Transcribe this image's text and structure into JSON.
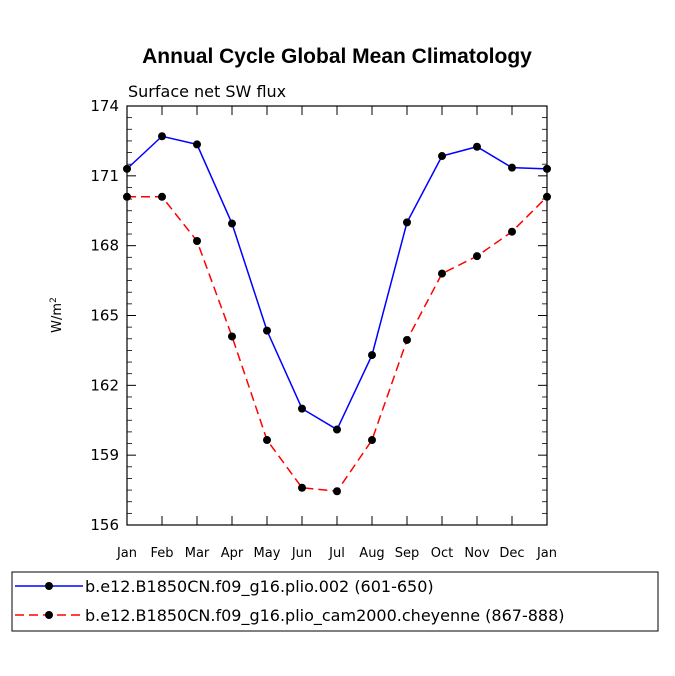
{
  "chart_data": {
    "type": "line",
    "title": "Annual Cycle Global Mean Climatology",
    "subtitle": "Surface net SW flux",
    "ylabel": "W/m",
    "ylabel_superscript": "2",
    "xlabel": "",
    "ylim": [
      156,
      174
    ],
    "yticks": [
      "174",
      "171",
      "168",
      "165",
      "162",
      "159",
      "156"
    ],
    "ytick_values": [
      174,
      171,
      168,
      165,
      162,
      159,
      156
    ],
    "categories": [
      "Jan",
      "Feb",
      "Mar",
      "Apr",
      "May",
      "Jun",
      "Jul",
      "Aug",
      "Sep",
      "Oct",
      "Nov",
      "Dec",
      "Jan"
    ],
    "grid": false,
    "legend_position": "bottom",
    "series": [
      {
        "name": "b.e12.B1850CN.f09_g16.plio.002 (601-650)",
        "color": "#0000ff",
        "dash": "solid",
        "marker_color": "#000000",
        "values": [
          171.3,
          172.7,
          172.35,
          168.95,
          164.35,
          161.0,
          160.1,
          163.3,
          169.0,
          171.85,
          172.25,
          171.35,
          171.3
        ]
      },
      {
        "name": "b.e12.B1850CN.f09_g16.plio_cam2000.cheyenne (867-888)",
        "color": "#ff0000",
        "dash": "dashed",
        "marker_color": "#000000",
        "values": [
          170.1,
          170.1,
          168.2,
          164.1,
          159.65,
          157.6,
          157.45,
          159.65,
          163.95,
          166.8,
          167.55,
          168.6,
          170.1
        ]
      }
    ]
  }
}
